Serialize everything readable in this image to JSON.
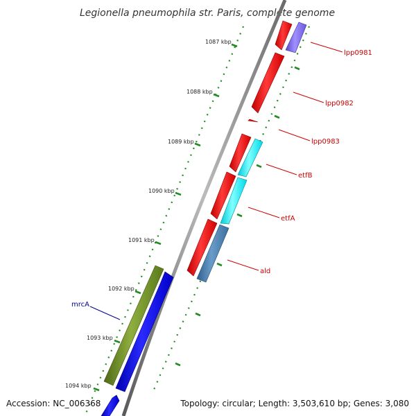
{
  "title": "Legionella pneumophila str. Paris, complete genome",
  "accession": "Accession: NC_006368",
  "summary": "Topology: circular; Length: 3,503,610 bp; Genes: 3,080",
  "scale_labels": [
    "1087 kbp",
    "1088 kbp",
    "1089 kbp",
    "1090 kbp",
    "1091 kbp",
    "1092 kbp",
    "1093 kbp",
    "1094 kbp"
  ],
  "genes": [
    {
      "name": "lpp0981",
      "strand": "-",
      "color": "#7b68ee"
    },
    {
      "name": "lpp0982",
      "strand": "+",
      "color": "#ff0000"
    },
    {
      "name": "lpp0983",
      "strand": "+",
      "color": "#ff0000"
    },
    {
      "name": "etfB",
      "strand": "-",
      "color": "#00ffff"
    },
    {
      "name": "etfA",
      "strand": "-",
      "color": "#00ffff"
    },
    {
      "name": "ald",
      "strand": "-",
      "color": "#4682b4"
    },
    {
      "name": "mrcA",
      "strand": "+",
      "color": "#6b8e23"
    }
  ],
  "colors": {
    "forward_cds": "#ff0000",
    "reverse_cds": "#0000ff",
    "backbone": "#808080",
    "ticks": "#228b22",
    "red_label": "#cc0000",
    "blue_label": "#00008b"
  }
}
